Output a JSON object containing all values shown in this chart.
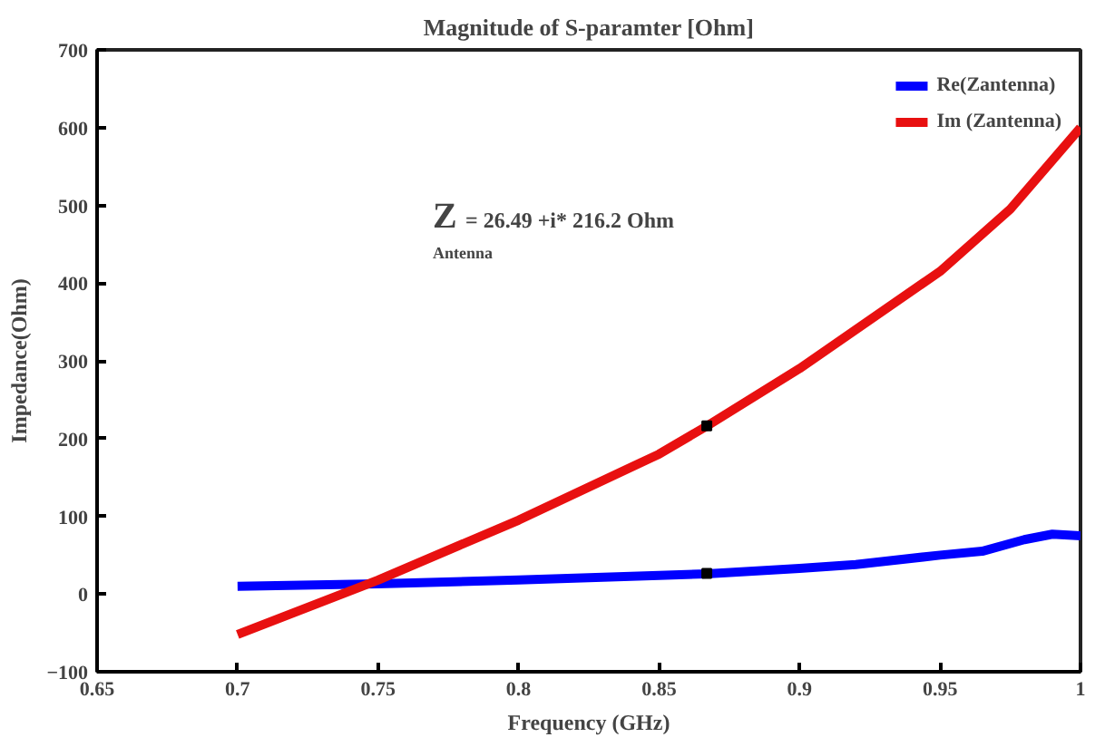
{
  "chart_data": {
    "type": "line",
    "title": "Magnitude of S-paramter [Ohm]",
    "xlabel": "Frequency (GHz)",
    "ylabel": "Impedance(Ohm)",
    "xlim": [
      0.65,
      1
    ],
    "xticks": [
      0.65,
      0.7,
      0.75,
      0.8,
      0.85,
      0.9,
      0.95,
      1
    ],
    "ylim": [
      -100,
      700
    ],
    "yticks": [
      -100,
      0,
      100,
      200,
      300,
      400,
      500,
      600,
      700
    ],
    "grid": false,
    "legend": "top right",
    "line_style": "solid",
    "marker": "none",
    "series": [
      {
        "name": "Re(Zantenna)",
        "color": "#0000ff",
        "x": [
          0.7,
          0.75,
          0.8,
          0.85,
          0.867,
          0.9,
          0.92,
          0.95,
          0.965,
          0.98,
          0.99,
          1.0
        ],
        "values": [
          10,
          13,
          18,
          24,
          26,
          33,
          38,
          50,
          55,
          70,
          77,
          75
        ]
      },
      {
        "name": "Im (Zantenna)",
        "color": "#e81010",
        "x": [
          0.7,
          0.75,
          0.8,
          0.85,
          0.867,
          0.9,
          0.95,
          0.975,
          1.0
        ],
        "values": [
          -52,
          18,
          95,
          180,
          216,
          290,
          415,
          495,
          600
        ]
      },
      {
        "type": "scatter",
        "marker": "square",
        "color": "#000000",
        "x": [
          0.867
        ],
        "values": [
          26.49
        ]
      },
      {
        "type": "scatter",
        "marker": "square",
        "color": "#000000",
        "x": [
          0.867
        ],
        "values": [
          216.2
        ]
      }
    ],
    "annotations": [
      "Z$_{Antenna}$",
      "= 26.49 +i* 216.2 Ohm"
    ]
  }
}
